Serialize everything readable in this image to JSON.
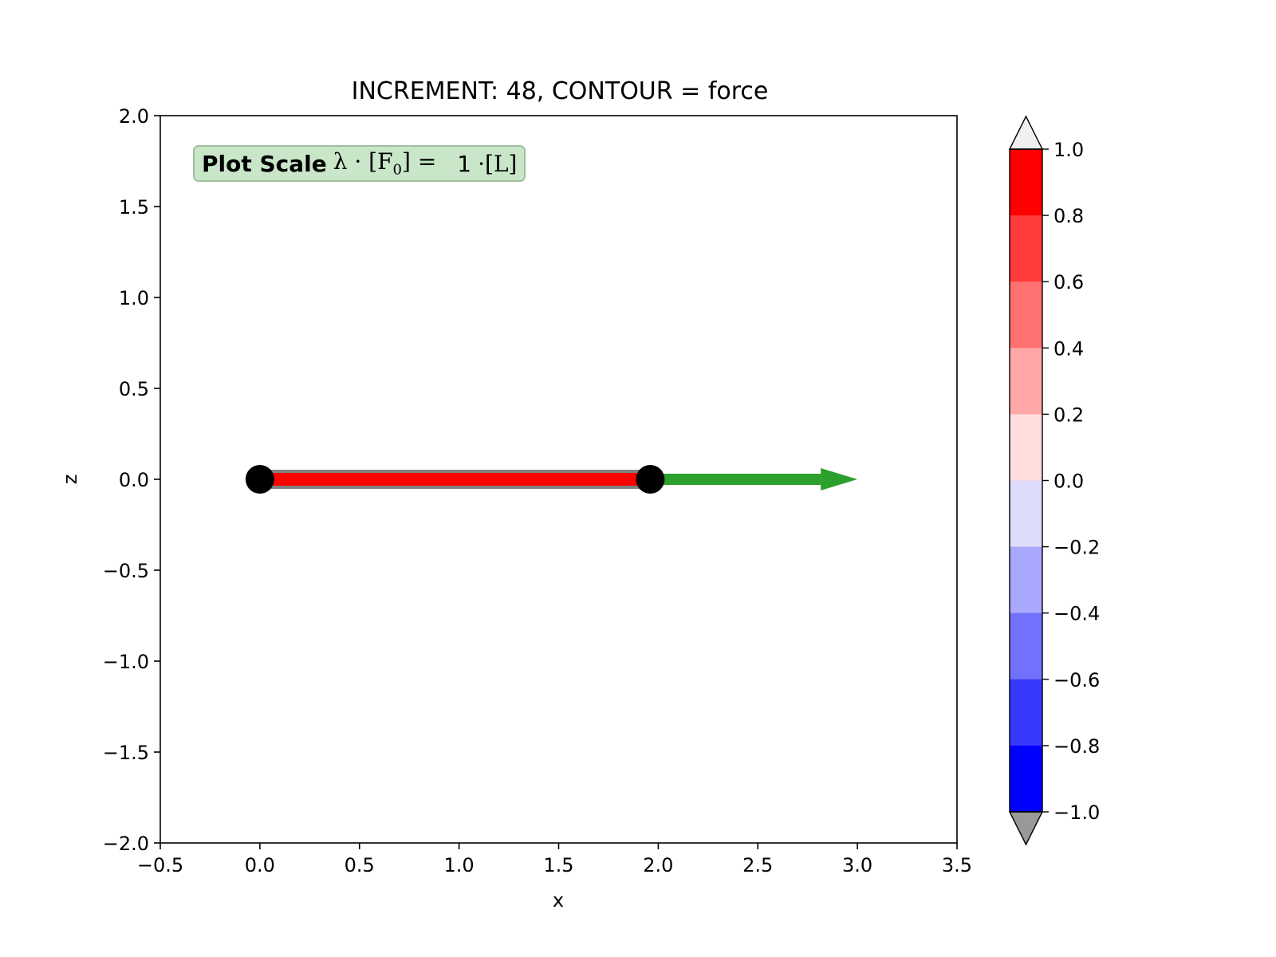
{
  "chart_data": {
    "type": "line",
    "title": "INCREMENT: 48, CONTOUR = force",
    "xlabel": "x",
    "ylabel": "z",
    "xlim": [
      -0.5,
      3.5
    ],
    "ylim": [
      -2.0,
      2.0
    ],
    "x_ticks": [
      "−0.5",
      "0.0",
      "0.5",
      "1.0",
      "1.5",
      "2.0",
      "2.5",
      "3.0",
      "3.5"
    ],
    "y_ticks": [
      "−2.0",
      "−1.5",
      "−1.0",
      "−0.5",
      "0.0",
      "0.5",
      "1.0",
      "1.5",
      "2.0"
    ],
    "grid": false,
    "annotation": {
      "bold": "Plot Scale",
      "formula": "λ · [F",
      "subscript": "0",
      "formula_end": "] =",
      "value": "1",
      "unit": "·[L]"
    },
    "elements": {
      "undeformed_bar": {
        "x": [
          0.0,
          2.0
        ],
        "z": [
          0.0,
          0.0
        ],
        "color": "#808080"
      },
      "deformed_bar": {
        "x": [
          0.0,
          1.96
        ],
        "z": [
          0.0,
          0.0
        ],
        "color": "#ff0000",
        "force": 1.0
      },
      "nodes": [
        {
          "x": 0.0,
          "z": 0.0
        },
        {
          "x": 1.96,
          "z": 0.0
        }
      ],
      "force_arrow": {
        "x0": 1.96,
        "z0": 0.0,
        "x1": 3.0,
        "z1": 0.0,
        "color": "#2ca02c"
      }
    },
    "colorbar": {
      "range": [
        -1.0,
        1.0
      ],
      "tick_labels": [
        "1.0",
        "0.8",
        "0.6",
        "0.4",
        "0.2",
        "0.0",
        "−0.2",
        "−0.4",
        "−0.6",
        "−0.8",
        "−1.0"
      ],
      "colors_top_to_bottom": [
        "#ff0000",
        "#ff3b3b",
        "#ff7171",
        "#ffa7a7",
        "#ffdddd",
        "#dddcfb",
        "#a8a8fc",
        "#7171fd",
        "#3939fd",
        "#0000ff"
      ],
      "extend_max_color": "#f0f0f0",
      "extend_min_color": "#999999"
    }
  }
}
